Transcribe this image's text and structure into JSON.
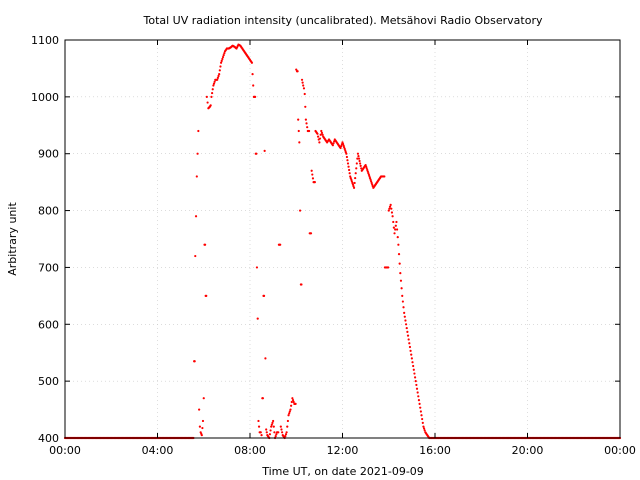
{
  "chart_data": {
    "type": "scatter",
    "title": "Total UV radiation intensity (uncalibrated). Metsähovi Radio Observatory",
    "xlabel": "Time UT, on date 2021-09-09",
    "ylabel": "Arbitrary unit",
    "xlim": [
      "00:00",
      "24:00"
    ],
    "ylim": [
      400,
      1100
    ],
    "x_ticks": [
      "00:00",
      "04:00",
      "08:00",
      "12:00",
      "16:00",
      "20:00",
      "00:00"
    ],
    "y_ticks": [
      400,
      500,
      600,
      700,
      800,
      900,
      1000,
      1100
    ],
    "grid": true,
    "legend": "none",
    "marker_color": "#ff0000",
    "series": [
      {
        "x": [
          "00:00",
          "00:30",
          "01:00",
          "01:30",
          "02:00",
          "02:30",
          "03:00",
          "03:30",
          "04:00",
          "04:30",
          "05:00",
          "05:30",
          "05:35",
          "05:38",
          "05:40",
          "05:42",
          "05:44",
          "05:46",
          "05:48",
          "05:50",
          "05:52",
          "05:55",
          "05:58",
          "06:00",
          "06:02",
          "06:05",
          "06:08",
          "06:10",
          "06:12",
          "06:15",
          "06:18",
          "06:20",
          "06:25",
          "06:30",
          "06:35",
          "06:40",
          "06:45",
          "06:50",
          "06:55",
          "07:00",
          "07:05",
          "07:10",
          "07:15",
          "07:20",
          "07:25",
          "07:30",
          "07:35",
          "07:40",
          "07:45",
          "07:50",
          "07:55",
          "08:00",
          "08:05",
          "08:10",
          "08:15",
          "08:18",
          "08:20",
          "08:22",
          "08:25",
          "08:28",
          "08:30",
          "08:32",
          "08:35",
          "08:38",
          "08:40",
          "08:42",
          "08:45",
          "08:50",
          "08:55",
          "09:00",
          "09:05",
          "09:10",
          "09:15",
          "09:20",
          "09:25",
          "09:30",
          "09:35",
          "09:40",
          "09:45",
          "09:50",
          "09:55",
          "10:00",
          "10:02",
          "10:05",
          "10:08",
          "10:10",
          "10:12",
          "10:15",
          "10:18",
          "10:20",
          "10:22",
          "10:25",
          "10:30",
          "10:35",
          "10:40",
          "10:45",
          "10:50",
          "10:55",
          "11:00",
          "11:05",
          "11:10",
          "11:15",
          "11:20",
          "11:25",
          "11:30",
          "11:35",
          "11:40",
          "11:45",
          "11:50",
          "11:55",
          "12:00",
          "12:10",
          "12:20",
          "12:30",
          "12:40",
          "12:50",
          "13:00",
          "13:10",
          "13:20",
          "13:30",
          "13:40",
          "13:50",
          "14:00",
          "14:05",
          "14:10",
          "14:15",
          "14:20",
          "14:25",
          "14:30",
          "14:35",
          "14:40",
          "14:45",
          "14:50",
          "14:55",
          "15:00",
          "15:05",
          "15:10",
          "15:15",
          "15:20",
          "15:25",
          "15:30",
          "15:35",
          "15:40",
          "15:45",
          "15:50",
          "15:55",
          "16:00",
          "16:05",
          "16:10",
          "16:15",
          "16:30",
          "17:00",
          "17:30",
          "18:00",
          "18:30",
          "19:00",
          "19:30",
          "20:00",
          "20:30",
          "21:00",
          "21:30",
          "22:00",
          "22:30",
          "23:00",
          "23:30",
          "24:00"
        ],
        "y": [
          400,
          400,
          400,
          400,
          400,
          400,
          400,
          400,
          400,
          400,
          400,
          400,
          535,
          720,
          790,
          860,
          900,
          940,
          450,
          420,
          410,
          405,
          430,
          470,
          740,
          650,
          1000,
          990,
          980,
          982,
          985,
          1000,
          1020,
          1030,
          1030,
          1040,
          1060,
          1070,
          1080,
          1085,
          1085,
          1087,
          1090,
          1088,
          1085,
          1092,
          1090,
          1085,
          1080,
          1075,
          1070,
          1065,
          1060,
          1000,
          900,
          700,
          610,
          430,
          410,
          410,
          405,
          470,
          650,
          905,
          540,
          415,
          405,
          400,
          420,
          430,
          400,
          410,
          740,
          420,
          405,
          400,
          410,
          440,
          450,
          470,
          460,
          1048,
          1045,
          960,
          920,
          800,
          670,
          1030,
          1020,
          1015,
          1005,
          960,
          940,
          760,
          870,
          850,
          940,
          935,
          920,
          940,
          930,
          925,
          920,
          925,
          920,
          915,
          925,
          920,
          915,
          910,
          920,
          900,
          860,
          840,
          900,
          870,
          880,
          860,
          840,
          850,
          860,
          700,
          800,
          810,
          790,
          760,
          780,
          740,
          690,
          650,
          620,
          600,
          580,
          560,
          540,
          520,
          500,
          480,
          460,
          440,
          420,
          410,
          405,
          400,
          400,
          400,
          400,
          400,
          400,
          400,
          400,
          400,
          400,
          400,
          400,
          400,
          400,
          400,
          400,
          400,
          400,
          400,
          400,
          400,
          400,
          400
        ]
      }
    ]
  }
}
